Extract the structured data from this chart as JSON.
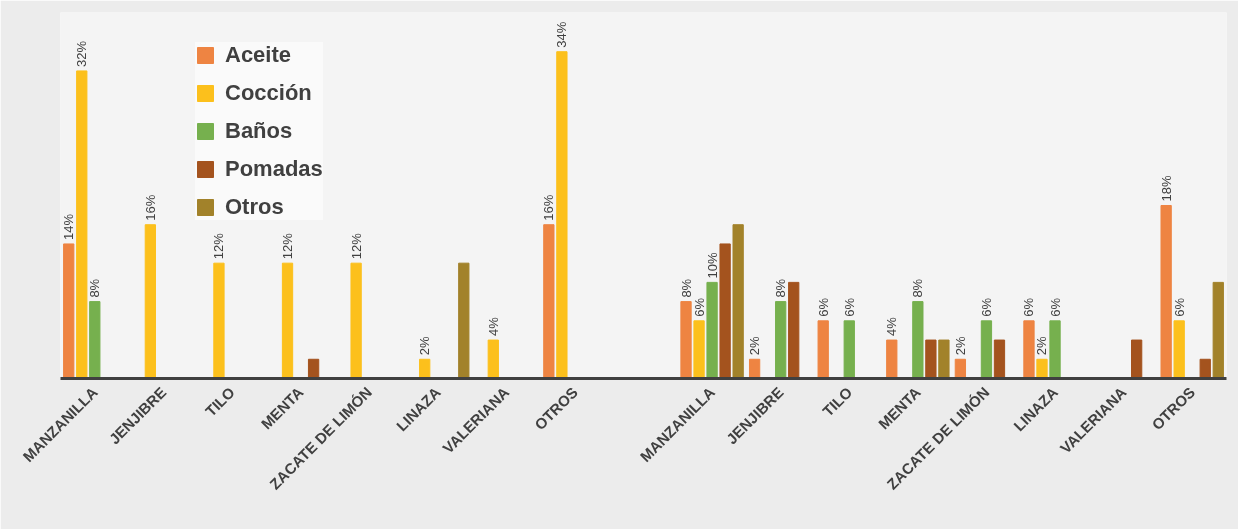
{
  "chart_data": {
    "type": "bar",
    "categories": [
      "MANZANILLA",
      "JENJIBRE",
      "TILO",
      "MENTA",
      "ZACATE DE LIMÓN",
      "LINAZA",
      "VALERIANA",
      "OTROS",
      null,
      "MANZANILLA",
      "JENJIBRE",
      "TILO",
      "MENTA",
      "ZACATE DE LIMÓN",
      "LINAZA",
      "VALERIANA",
      "OTROS"
    ],
    "series": [
      {
        "name": "Aceite",
        "color": "#ee8442",
        "values": [
          14,
          null,
          null,
          null,
          null,
          null,
          null,
          16,
          0,
          8,
          2,
          6,
          4,
          2,
          6,
          null,
          18
        ],
        "value_labels": [
          "14%",
          null,
          null,
          null,
          null,
          null,
          null,
          "16%",
          null,
          "8%",
          "2%",
          "6%",
          "4%",
          "2%",
          "6%",
          null,
          "18%"
        ]
      },
      {
        "name": "Cocción",
        "color": "#fcc01c",
        "values": [
          32,
          16,
          12,
          12,
          12,
          2,
          4,
          34,
          0,
          6,
          null,
          null,
          null,
          null,
          2,
          null,
          6
        ],
        "value_labels": [
          "32%",
          "16%",
          "12%",
          "12%",
          "12%",
          "2%",
          "4%",
          "34%",
          null,
          "6%",
          null,
          null,
          null,
          null,
          "2%",
          null,
          "6%"
        ]
      },
      {
        "name": "Baños",
        "color": "#76b04e",
        "values": [
          8,
          null,
          null,
          null,
          null,
          null,
          null,
          null,
          0,
          10,
          8,
          6,
          8,
          6,
          6,
          null,
          null
        ],
        "value_labels": [
          "8%",
          null,
          null,
          null,
          null,
          null,
          null,
          null,
          null,
          "10%",
          "8%",
          "6%",
          "8%",
          "6%",
          "6%",
          null,
          null
        ]
      },
      {
        "name": "Pomadas",
        "color": "#a4531e",
        "values": [
          null,
          null,
          null,
          2,
          null,
          null,
          null,
          null,
          0,
          14,
          10,
          null,
          4,
          4,
          null,
          4,
          2
        ]
      },
      {
        "name": "Otros",
        "color": "#a2822a",
        "values": [
          null,
          null,
          null,
          null,
          null,
          12,
          null,
          null,
          0,
          16,
          null,
          null,
          4,
          null,
          null,
          null,
          10
        ]
      }
    ],
    "legend": "top left",
    "grid": false,
    "tick_labels": "x"
  }
}
